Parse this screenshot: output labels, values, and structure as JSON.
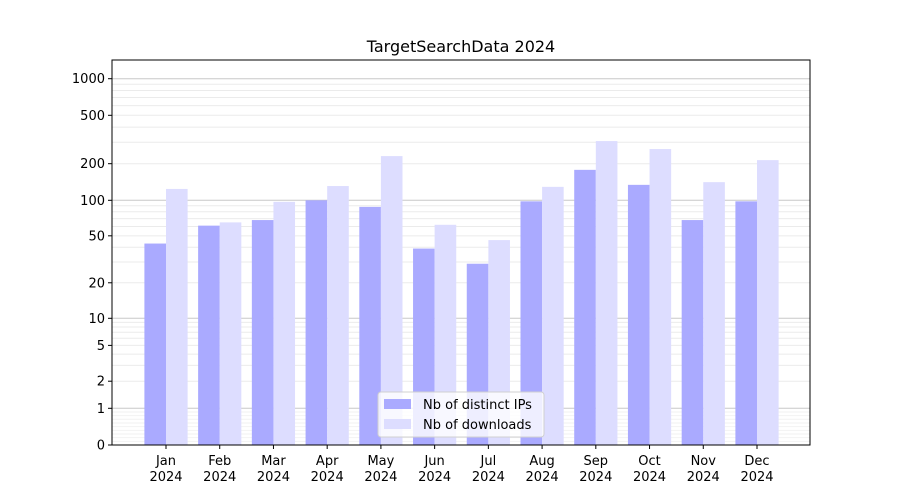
{
  "chart_data": {
    "type": "bar",
    "title": "TargetSearchData 2024",
    "xlabel": "",
    "ylabel": "",
    "yscale": "symlog",
    "ylim": [
      0,
      1400
    ],
    "yticks": [
      0,
      1,
      2,
      5,
      10,
      20,
      50,
      100,
      200,
      500,
      1000
    ],
    "ytick_labels": [
      "0",
      "1",
      "2",
      "5",
      "10",
      "20",
      "50",
      "100",
      "200",
      "500",
      "1000"
    ],
    "grid": true,
    "legend_position": "lower center",
    "categories": [
      "Jan\n2024",
      "Feb\n2024",
      "Mar\n2024",
      "Apr\n2024",
      "May\n2024",
      "Jun\n2024",
      "Jul\n2024",
      "Aug\n2024",
      "Sep\n2024",
      "Oct\n2024",
      "Nov\n2024",
      "Dec\n2024"
    ],
    "series": [
      {
        "name": "Nb of distinct IPs",
        "color": "#aaaaff",
        "values": [
          43,
          61,
          68,
          100,
          88,
          39,
          29,
          98,
          178,
          134,
          68,
          98
        ]
      },
      {
        "name": "Nb of downloads",
        "color": "#ddddff",
        "values": [
          124,
          65,
          97,
          131,
          231,
          62,
          46,
          129,
          307,
          264,
          141,
          214
        ]
      }
    ]
  }
}
